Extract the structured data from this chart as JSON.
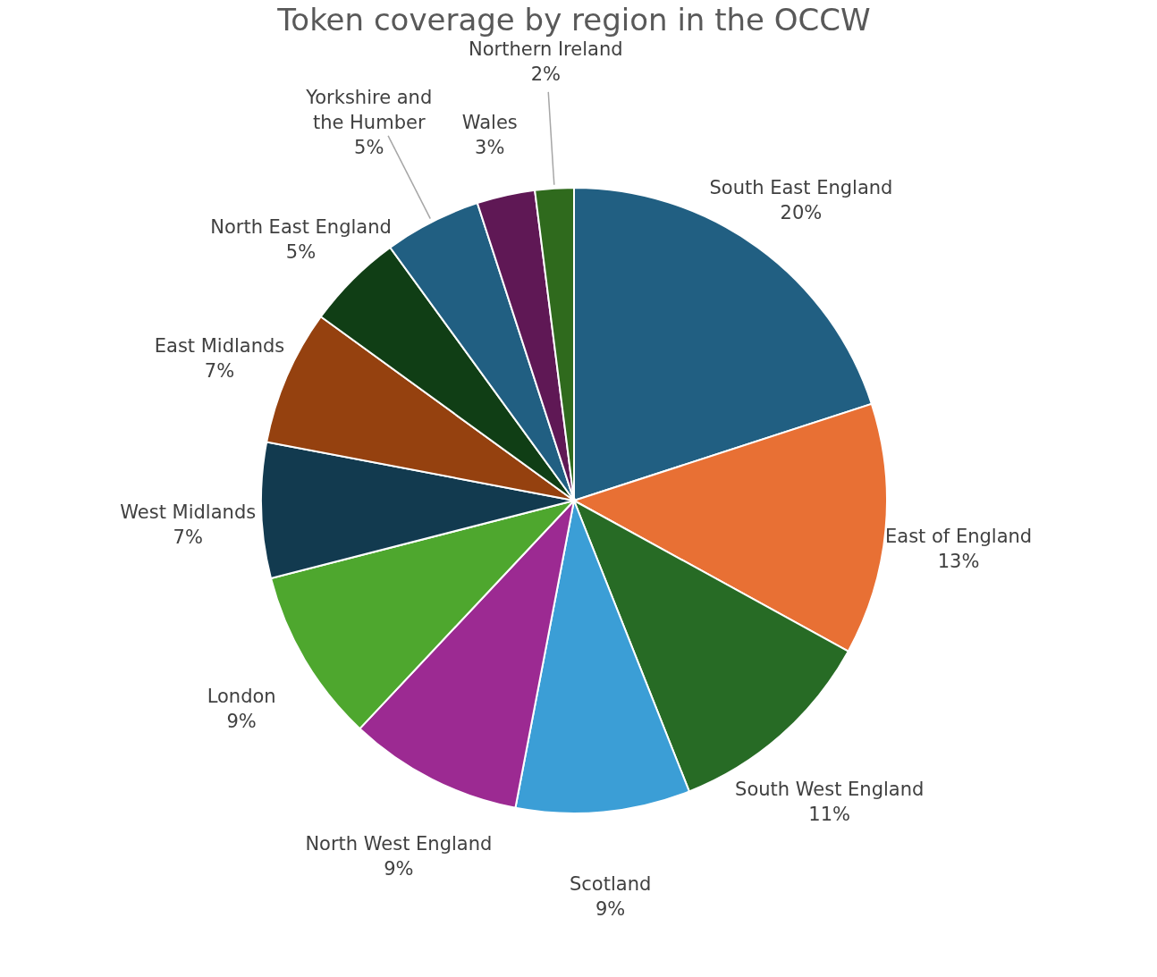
{
  "chart_data": {
    "type": "pie",
    "title": "Token coverage by region in the OCCW",
    "categories": [
      "South East England",
      "East of England",
      "South West England",
      "Scotland",
      "North West England",
      "London",
      "West Midlands",
      "East Midlands",
      "North East England",
      "Yorkshire and the Humber",
      "Wales",
      "Northern Ireland"
    ],
    "values": [
      20,
      13,
      11,
      9,
      9,
      9,
      7,
      7,
      5,
      5,
      3,
      2
    ],
    "value_labels": [
      "20%",
      "13%",
      "11%",
      "9%",
      "9%",
      "9%",
      "7%",
      "7%",
      "5%",
      "5%",
      "3%",
      "2%"
    ],
    "colors": [
      "#215f82",
      "#e87034",
      "#276b25",
      "#3b9ed6",
      "#9c2a92",
      "#4ea72e",
      "#123a4f",
      "#95410f",
      "#103e15",
      "#215f82",
      "#5f1855",
      "#2f6a1d"
    ]
  }
}
